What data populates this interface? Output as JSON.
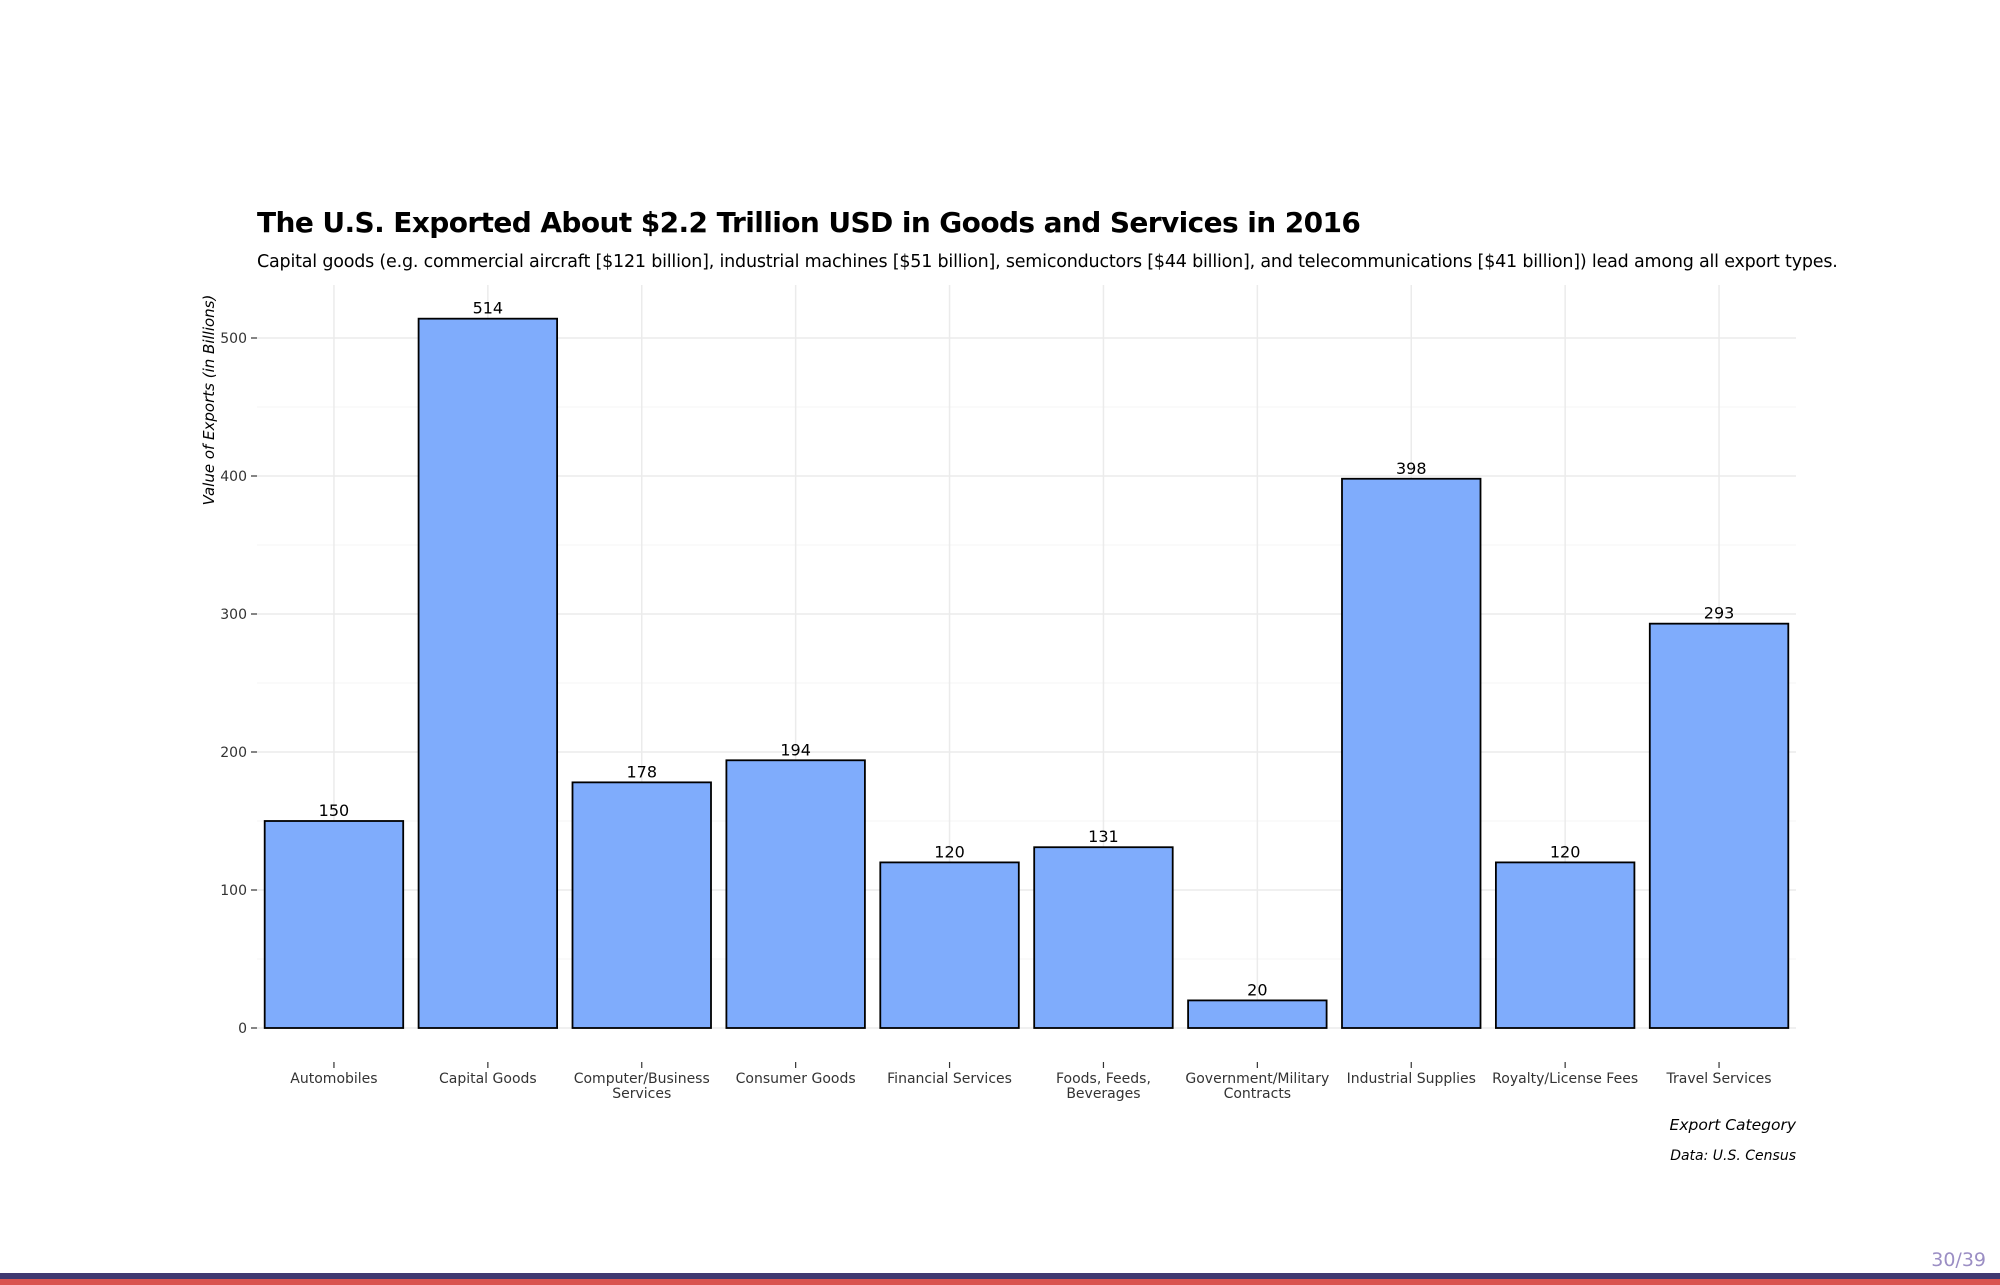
{
  "slide": {
    "title": "The U.S. Exported About $2.2 Trillion USD in Goods and Services in 2016",
    "subtitle": "Capital goods (e.g. commercial aircraft [$121 billion], industrial machines [$51 billion], semiconductors [$44 billion], and telecommunications [$41 billion]) lead among all export types.",
    "caption": "Data: U.S. Census",
    "page_number": "30/39"
  },
  "chart_data": {
    "type": "bar",
    "categories": [
      "Automobiles",
      "Capital Goods",
      "Computer/Business Services",
      "Consumer Goods",
      "Financial Services",
      "Foods, Feeds, Beverages",
      "Government/Military Contracts",
      "Industrial Supplies",
      "Royalty/License Fees",
      "Travel Services"
    ],
    "category_label_lines": [
      [
        "Automobiles"
      ],
      [
        "Capital Goods"
      ],
      [
        "Computer/Business",
        "Services"
      ],
      [
        "Consumer Goods"
      ],
      [
        "Financial Services"
      ],
      [
        "Foods, Feeds,",
        "Beverages"
      ],
      [
        "Government/Military",
        "Contracts"
      ],
      [
        "Industrial Supplies"
      ],
      [
        "Royalty/License Fees"
      ],
      [
        "Travel Services"
      ]
    ],
    "values": [
      150,
      514,
      178,
      194,
      120,
      131,
      20,
      398,
      120,
      293
    ],
    "data_labels": [
      "150",
      "514",
      "178",
      "194",
      "120",
      "131",
      "20",
      "398",
      "120",
      "293"
    ],
    "xlabel": "Export Category",
    "ylabel": "Value of Exports (in Billions)",
    "ylim": [
      0,
      540
    ],
    "yticks": [
      0,
      100,
      200,
      300,
      400,
      500
    ],
    "grid": true,
    "bar_color": "#7facfc",
    "bar_border_color": "#000000"
  },
  "colors": {
    "footer_bar_top": "#3f3870",
    "footer_bar_bottom": "#d9534f",
    "page_number": "#9b8ec4",
    "grid": "#ebebeb"
  }
}
